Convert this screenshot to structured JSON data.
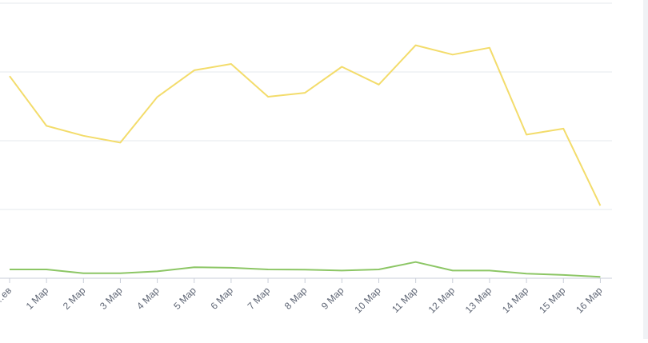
{
  "chart_data": {
    "type": "line",
    "title": "",
    "xlabel": "",
    "ylabel": "",
    "grid": true,
    "legend": "none",
    "categories": [
      "…ев",
      "1 Мар",
      "2 Мар",
      "3 Мар",
      "4 Мар",
      "5 Мар",
      "6 Мар",
      "7 Мар",
      "8 Мар",
      "9 Мар",
      "10 Мар",
      "11 Мар",
      "12 Мар",
      "13 Мар",
      "14 Мар",
      "15 Мар",
      "16 Мар"
    ],
    "series": [
      {
        "color": "#f3dc6b",
        "values": [
          73.5,
          55.4,
          51.8,
          49.3,
          65.9,
          75.6,
          77.9,
          66.0,
          67.4,
          76.9,
          70.4,
          84.7,
          81.3,
          83.8,
          52.2,
          54.4,
          26.4
        ]
      },
      {
        "color": "#8cc665",
        "values": [
          3.2,
          3.2,
          1.8,
          1.8,
          2.5,
          4.0,
          3.8,
          3.2,
          3.1,
          2.8,
          3.2,
          5.9,
          2.8,
          2.8,
          1.7,
          1.2,
          0.5
        ]
      }
    ],
    "ylim": [
      0,
      100
    ],
    "gridlines": [
      0,
      25,
      50,
      75,
      100
    ]
  }
}
